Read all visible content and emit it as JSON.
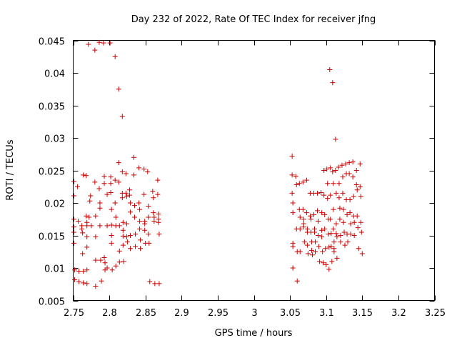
{
  "chart_data": {
    "type": "scatter",
    "title": "Day 232 of 2022, Rate Of TEC Index for receiver jfng",
    "xlabel": "GPS time / hours",
    "ylabel": "ROTI / TECUs",
    "xlim": [
      2.75,
      3.25
    ],
    "ylim": [
      0.005,
      0.045
    ],
    "grid": false,
    "marker": "plus",
    "marker_color": "#cc0000",
    "xticks": [
      "2.75",
      "2.8",
      "2.85",
      "2.9",
      "2.95",
      "3",
      "3.05",
      "3.1",
      "3.15",
      "3.2",
      "3.25"
    ],
    "xtick_values": [
      2.75,
      2.8,
      2.85,
      2.9,
      2.95,
      3.0,
      3.05,
      3.1,
      3.15,
      3.2,
      3.25
    ],
    "yticks": [
      "0.005",
      "0.01",
      "0.015",
      "0.02",
      "0.025",
      "0.03",
      "0.035",
      "0.04",
      "0.045"
    ],
    "ytick_values": [
      0.005,
      0.01,
      0.015,
      0.02,
      0.025,
      0.03,
      0.035,
      0.04,
      0.045
    ],
    "series": [
      {
        "name": "ROTI",
        "points": [
          [
            2.751,
            0.0233
          ],
          [
            2.751,
            0.0211
          ],
          [
            2.751,
            0.0175
          ],
          [
            2.751,
            0.0163
          ],
          [
            2.751,
            0.0155
          ],
          [
            2.751,
            0.0138
          ],
          [
            2.752,
            0.0097
          ],
          [
            2.752,
            0.0082
          ],
          [
            2.756,
            0.0225
          ],
          [
            2.757,
            0.0172
          ],
          [
            2.758,
            0.0095
          ],
          [
            2.758,
            0.0079
          ],
          [
            2.762,
            0.0165
          ],
          [
            2.762,
            0.016
          ],
          [
            2.763,
            0.0154
          ],
          [
            2.763,
            0.0122
          ],
          [
            2.764,
            0.0243
          ],
          [
            2.764,
            0.0095
          ],
          [
            2.764,
            0.0077
          ],
          [
            2.768,
            0.0242
          ],
          [
            2.768,
            0.018
          ],
          [
            2.769,
            0.017
          ],
          [
            2.769,
            0.0165
          ],
          [
            2.769,
            0.0148
          ],
          [
            2.769,
            0.0132
          ],
          [
            2.769,
            0.0097
          ],
          [
            2.769,
            0.0076
          ],
          [
            2.771,
            0.0444
          ],
          [
            2.772,
            0.0178
          ],
          [
            2.773,
            0.0203
          ],
          [
            2.774,
            0.0211
          ],
          [
            2.775,
            0.0165
          ],
          [
            2.78,
            0.0435
          ],
          [
            2.78,
            0.0232
          ],
          [
            2.781,
            0.018
          ],
          [
            2.781,
            0.0148
          ],
          [
            2.781,
            0.0112
          ],
          [
            2.781,
            0.0072
          ],
          [
            2.786,
            0.0447
          ],
          [
            2.786,
            0.0222
          ],
          [
            2.787,
            0.02
          ],
          [
            2.787,
            0.0192
          ],
          [
            2.787,
            0.0165
          ],
          [
            2.788,
            0.0112
          ],
          [
            2.789,
            0.008
          ],
          [
            2.792,
            0.0446
          ],
          [
            2.793,
            0.0241
          ],
          [
            2.793,
            0.023
          ],
          [
            2.793,
            0.0116
          ],
          [
            2.794,
            0.0108
          ],
          [
            2.794,
            0.0097
          ],
          [
            2.797,
            0.0213
          ],
          [
            2.797,
            0.0165
          ],
          [
            2.797,
            0.01
          ],
          [
            2.801,
            0.0446
          ],
          [
            2.802,
            0.024
          ],
          [
            2.802,
            0.023
          ],
          [
            2.802,
            0.0216
          ],
          [
            2.803,
            0.019
          ],
          [
            2.803,
            0.0166
          ],
          [
            2.803,
            0.015
          ],
          [
            2.803,
            0.0138
          ],
          [
            2.804,
            0.0097
          ],
          [
            2.808,
            0.0425
          ],
          [
            2.808,
            0.0235
          ],
          [
            2.808,
            0.02
          ],
          [
            2.809,
            0.0178
          ],
          [
            2.809,
            0.0165
          ],
          [
            2.809,
            0.0103
          ],
          [
            2.813,
            0.0375
          ],
          [
            2.813,
            0.0262
          ],
          [
            2.813,
            0.0232
          ],
          [
            2.814,
            0.0165
          ],
          [
            2.814,
            0.0126
          ],
          [
            2.814,
            0.0109
          ],
          [
            2.818,
            0.0333
          ],
          [
            2.818,
            0.0248
          ],
          [
            2.818,
            0.0215
          ],
          [
            2.818,
            0.0208
          ],
          [
            2.819,
            0.017
          ],
          [
            2.819,
            0.0158
          ],
          [
            2.819,
            0.0149
          ],
          [
            2.819,
            0.0135
          ],
          [
            2.82,
            0.011
          ],
          [
            2.823,
            0.0245
          ],
          [
            2.823,
            0.0215
          ],
          [
            2.824,
            0.021
          ],
          [
            2.824,
            0.0168
          ],
          [
            2.824,
            0.0148
          ],
          [
            2.825,
            0.014
          ],
          [
            2.828,
            0.022
          ],
          [
            2.828,
            0.0212
          ],
          [
            2.829,
            0.02
          ],
          [
            2.829,
            0.0186
          ],
          [
            2.829,
            0.015
          ],
          [
            2.829,
            0.013
          ],
          [
            2.834,
            0.027
          ],
          [
            2.834,
            0.0243
          ],
          [
            2.835,
            0.0196
          ],
          [
            2.835,
            0.0178
          ],
          [
            2.836,
            0.0152
          ],
          [
            2.836,
            0.0133
          ],
          [
            2.841,
            0.0254
          ],
          [
            2.841,
            0.02
          ],
          [
            2.842,
            0.019
          ],
          [
            2.842,
            0.0172
          ],
          [
            2.842,
            0.016
          ],
          [
            2.843,
            0.0143
          ],
          [
            2.843,
            0.013
          ],
          [
            2.848,
            0.0252
          ],
          [
            2.848,
            0.0213
          ],
          [
            2.849,
            0.0172
          ],
          [
            2.849,
            0.0168
          ],
          [
            2.849,
            0.0158
          ],
          [
            2.85,
            0.0138
          ],
          [
            2.853,
            0.0248
          ],
          [
            2.854,
            0.0195
          ],
          [
            2.854,
            0.0178
          ],
          [
            2.854,
            0.0152
          ],
          [
            2.855,
            0.0138
          ],
          [
            2.856,
            0.0079
          ],
          [
            2.86,
            0.0218
          ],
          [
            2.861,
            0.0208
          ],
          [
            2.861,
            0.0185
          ],
          [
            2.862,
            0.0178
          ],
          [
            2.862,
            0.0172
          ],
          [
            2.863,
            0.0076
          ],
          [
            2.867,
            0.0235
          ],
          [
            2.867,
            0.0213
          ],
          [
            2.868,
            0.0183
          ],
          [
            2.868,
            0.0175
          ],
          [
            2.868,
            0.017
          ],
          [
            2.869,
            0.0152
          ],
          [
            2.869,
            0.0076
          ]
        ]
      },
      {
        "name": "ROTI",
        "points": [
          [
            3.053,
            0.0272
          ],
          [
            3.053,
            0.0243
          ],
          [
            3.053,
            0.0215
          ],
          [
            3.054,
            0.02
          ],
          [
            3.054,
            0.0185
          ],
          [
            3.054,
            0.0138
          ],
          [
            3.054,
            0.0133
          ],
          [
            3.054,
            0.01
          ],
          [
            3.058,
            0.0241
          ],
          [
            3.059,
            0.0228
          ],
          [
            3.059,
            0.016
          ],
          [
            3.06,
            0.0125
          ],
          [
            3.06,
            0.008
          ],
          [
            3.063,
            0.023
          ],
          [
            3.063,
            0.019
          ],
          [
            3.064,
            0.0178
          ],
          [
            3.064,
            0.016
          ],
          [
            3.064,
            0.0125
          ],
          [
            3.068,
            0.0232
          ],
          [
            3.068,
            0.019
          ],
          [
            3.069,
            0.0175
          ],
          [
            3.069,
            0.0168
          ],
          [
            3.069,
            0.0163
          ],
          [
            3.07,
            0.014
          ],
          [
            3.073,
            0.0235
          ],
          [
            3.073,
            0.0185
          ],
          [
            3.074,
            0.016
          ],
          [
            3.074,
            0.0155
          ],
          [
            3.074,
            0.0135
          ],
          [
            3.075,
            0.0122
          ],
          [
            3.078,
            0.0215
          ],
          [
            3.078,
            0.018
          ],
          [
            3.079,
            0.0175
          ],
          [
            3.079,
            0.0155
          ],
          [
            3.08,
            0.014
          ],
          [
            3.08,
            0.0127
          ],
          [
            3.081,
            0.012
          ],
          [
            3.083,
            0.0215
          ],
          [
            3.083,
            0.0182
          ],
          [
            3.084,
            0.016
          ],
          [
            3.084,
            0.0155
          ],
          [
            3.085,
            0.014
          ],
          [
            3.085,
            0.0125
          ],
          [
            3.088,
            0.0215
          ],
          [
            3.088,
            0.0188
          ],
          [
            3.089,
            0.0172
          ],
          [
            3.089,
            0.015
          ],
          [
            3.09,
            0.0133
          ],
          [
            3.091,
            0.011
          ],
          [
            3.093,
            0.0216
          ],
          [
            3.094,
            0.0185
          ],
          [
            3.094,
            0.0158
          ],
          [
            3.094,
            0.0148
          ],
          [
            3.095,
            0.0125
          ],
          [
            3.096,
            0.0108
          ],
          [
            3.097,
            0.025
          ],
          [
            3.097,
            0.0212
          ],
          [
            3.098,
            0.0182
          ],
          [
            3.098,
            0.016
          ],
          [
            3.099,
            0.013
          ],
          [
            3.1,
            0.0105
          ],
          [
            3.101,
            0.0252
          ],
          [
            3.102,
            0.023
          ],
          [
            3.102,
            0.0207
          ],
          [
            3.103,
            0.0175
          ],
          [
            3.103,
            0.0152
          ],
          [
            3.104,
            0.0132
          ],
          [
            3.104,
            0.0098
          ],
          [
            3.105,
            0.0405
          ],
          [
            3.106,
            0.0254
          ],
          [
            3.106,
            0.0212
          ],
          [
            3.106,
            0.0175
          ],
          [
            3.107,
            0.0153
          ],
          [
            3.107,
            0.0133
          ],
          [
            3.108,
            0.011
          ],
          [
            3.109,
            0.0385
          ],
          [
            3.109,
            0.0248
          ],
          [
            3.11,
            0.023
          ],
          [
            3.11,
            0.019
          ],
          [
            3.11,
            0.016
          ],
          [
            3.111,
            0.014
          ],
          [
            3.111,
            0.013
          ],
          [
            3.111,
            0.0125
          ],
          [
            3.113,
            0.0298
          ],
          [
            3.113,
            0.025
          ],
          [
            3.114,
            0.0215
          ],
          [
            3.114,
            0.0168
          ],
          [
            3.114,
            0.0153
          ],
          [
            3.115,
            0.0148
          ],
          [
            3.115,
            0.0115
          ],
          [
            3.117,
            0.0255
          ],
          [
            3.118,
            0.023
          ],
          [
            3.118,
            0.0208
          ],
          [
            3.119,
            0.0192
          ],
          [
            3.119,
            0.0175
          ],
          [
            3.12,
            0.015
          ],
          [
            3.12,
            0.014
          ],
          [
            3.122,
            0.0258
          ],
          [
            3.123,
            0.024
          ],
          [
            3.123,
            0.0215
          ],
          [
            3.124,
            0.019
          ],
          [
            3.124,
            0.017
          ],
          [
            3.125,
            0.0155
          ],
          [
            3.126,
            0.0135
          ],
          [
            3.127,
            0.026
          ],
          [
            3.128,
            0.0245
          ],
          [
            3.128,
            0.0205
          ],
          [
            3.129,
            0.0182
          ],
          [
            3.129,
            0.0152
          ],
          [
            3.13,
            0.014
          ],
          [
            3.132,
            0.0262
          ],
          [
            3.132,
            0.0245
          ],
          [
            3.133,
            0.0205
          ],
          [
            3.133,
            0.0185
          ],
          [
            3.134,
            0.0168
          ],
          [
            3.134,
            0.0152
          ],
          [
            3.137,
            0.0263
          ],
          [
            3.137,
            0.024
          ],
          [
            3.138,
            0.021
          ],
          [
            3.138,
            0.018
          ],
          [
            3.139,
            0.017
          ],
          [
            3.139,
            0.015
          ],
          [
            3.142,
            0.025
          ],
          [
            3.142,
            0.0228
          ],
          [
            3.143,
            0.022
          ],
          [
            3.143,
            0.018
          ],
          [
            3.144,
            0.0162
          ],
          [
            3.145,
            0.013
          ],
          [
            3.147,
            0.026
          ],
          [
            3.147,
            0.0225
          ],
          [
            3.148,
            0.021
          ],
          [
            3.148,
            0.017
          ],
          [
            3.149,
            0.0155
          ],
          [
            3.15,
            0.0122
          ]
        ]
      }
    ]
  }
}
